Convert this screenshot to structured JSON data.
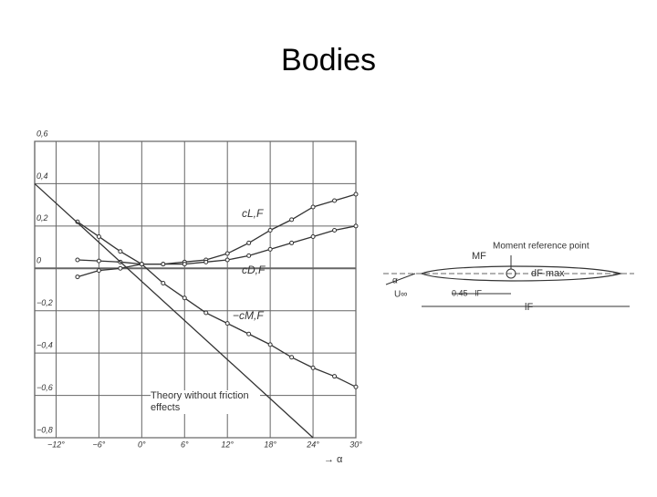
{
  "chart_data": {
    "type": "line",
    "title": "Bodies",
    "xlim": [
      -15,
      30
    ],
    "ylim": [
      -0.8,
      0.6
    ],
    "xticks": [
      {
        "value": -12,
        "label": "−12°"
      },
      {
        "value": -6,
        "label": "−6°"
      },
      {
        "value": 0,
        "label": "0°"
      },
      {
        "value": 6,
        "label": "6°"
      },
      {
        "value": 12,
        "label": "12°"
      },
      {
        "value": 18,
        "label": "18°"
      },
      {
        "value": 24,
        "label": "24°"
      },
      {
        "value": 30,
        "label": "30°"
      }
    ],
    "yticks": [
      {
        "value": -0.8,
        "label": "−0,8"
      },
      {
        "value": -0.6,
        "label": "−0,6"
      },
      {
        "value": -0.4,
        "label": "−0,4"
      },
      {
        "value": -0.2,
        "label": "−0,2"
      },
      0,
      {
        "value": 0.2,
        "label": "0,2"
      },
      {
        "value": 0.4,
        "label": "0,4"
      },
      {
        "value": 0.6,
        "label": "0,6"
      }
    ],
    "x_label": "→ α",
    "grid": true,
    "series": [
      {
        "name": "cL,F",
        "color": "#333333",
        "x": [
          -9,
          -6,
          -3,
          0,
          3,
          6,
          9,
          12,
          15,
          18,
          21,
          24,
          27,
          30
        ],
        "values": [
          0.04,
          0.035,
          0.03,
          0.02,
          0.02,
          0.03,
          0.04,
          0.07,
          0.12,
          0.18,
          0.23,
          0.29,
          0.32,
          0.35
        ]
      },
      {
        "name": "cD,F",
        "color": "#333333",
        "x": [
          -9,
          -6,
          -3,
          0,
          3,
          6,
          9,
          12,
          15,
          18,
          21,
          24,
          27,
          30
        ],
        "values": [
          -0.04,
          -0.01,
          0.0,
          0.02,
          0.02,
          0.02,
          0.03,
          0.04,
          0.06,
          0.09,
          0.12,
          0.15,
          0.18,
          0.2
        ]
      },
      {
        "name": "−cM,F",
        "color": "#333333",
        "x": [
          -9,
          -6,
          -3,
          0,
          3,
          6,
          9,
          12,
          15,
          18,
          21,
          24,
          27,
          30
        ],
        "values": [
          0.22,
          0.15,
          0.08,
          0.02,
          -0.07,
          -0.14,
          -0.21,
          -0.26,
          -0.31,
          -0.36,
          -0.42,
          -0.47,
          -0.51,
          -0.56
        ]
      },
      {
        "name": "Theory without friction effects",
        "color": "#333333",
        "x": [
          -15,
          24
        ],
        "values": [
          0.4,
          -0.8
        ]
      }
    ]
  },
  "diagram": {
    "moment_reference_point": "Moment reference point",
    "moment": "MF",
    "diameter": "dF max",
    "distance": "0.45 · lF",
    "length": "lF",
    "angle": "α",
    "velocity": "U∞"
  }
}
